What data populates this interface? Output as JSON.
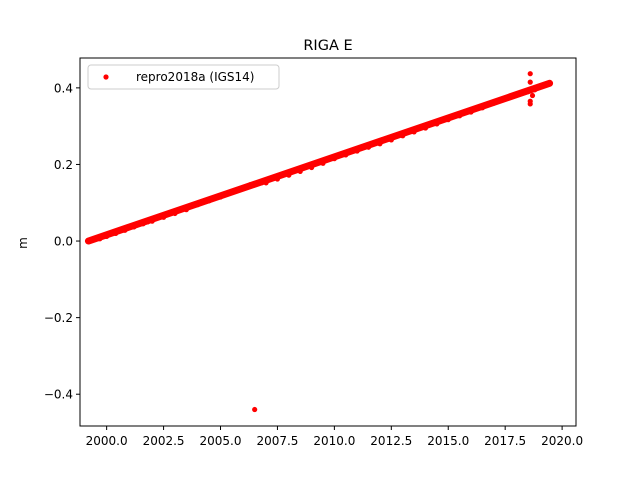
{
  "chart_data": {
    "type": "scatter",
    "title": "RIGA E",
    "xlabel": "",
    "ylabel": "m",
    "xlim": [
      1998.83,
      2020.61
    ],
    "ylim": [
      -0.483,
      0.478
    ],
    "xticks": [
      2000.0,
      2002.5,
      2005.0,
      2007.5,
      2010.0,
      2012.5,
      2015.0,
      2017.5,
      2020.0
    ],
    "xtick_labels": [
      "2000.0",
      "2002.5",
      "2005.0",
      "2007.5",
      "2010.0",
      "2012.5",
      "2015.0",
      "2017.5",
      "2020.0"
    ],
    "yticks": [
      -0.4,
      -0.2,
      0.0,
      0.2,
      0.4
    ],
    "ytick_labels": [
      "−0.4",
      "−0.2",
      "0.0",
      "0.2",
      "0.4"
    ],
    "grid": false,
    "legend_position": "upper left",
    "series": [
      {
        "name": "repro2018a (IGS14)",
        "color": "#ff0000",
        "marker": "circle",
        "trend": {
          "x_start": 1999.2,
          "y_start": 0.0,
          "x_end": 2019.45,
          "y_end": 0.412
        },
        "points": [
          [
            1999.2,
            0.0
          ],
          [
            1999.4,
            0.003
          ],
          [
            1999.7,
            0.006
          ],
          [
            2000.0,
            0.012
          ],
          [
            2000.4,
            0.02
          ],
          [
            2000.8,
            0.028
          ],
          [
            2001.2,
            0.037
          ],
          [
            2001.6,
            0.045
          ],
          [
            2001.8,
            0.05
          ],
          [
            2002.0,
            0.052
          ],
          [
            2002.5,
            0.062
          ],
          [
            2003.0,
            0.072
          ],
          [
            2003.5,
            0.082
          ],
          [
            2004.0,
            0.095
          ],
          [
            2004.5,
            0.105
          ],
          [
            2005.0,
            0.115
          ],
          [
            2005.5,
            0.128
          ],
          [
            2006.0,
            0.14
          ],
          [
            2006.3,
            0.147
          ],
          [
            2006.8,
            0.152
          ],
          [
            2007.0,
            0.152
          ],
          [
            2007.5,
            0.162
          ],
          [
            2008.0,
            0.172
          ],
          [
            2008.5,
            0.182
          ],
          [
            2009.0,
            0.192
          ],
          [
            2009.5,
            0.203
          ],
          [
            2010.0,
            0.215
          ],
          [
            2010.5,
            0.225
          ],
          [
            2011.0,
            0.235
          ],
          [
            2011.5,
            0.245
          ],
          [
            2012.0,
            0.254
          ],
          [
            2012.5,
            0.264
          ],
          [
            2013.0,
            0.275
          ],
          [
            2013.5,
            0.285
          ],
          [
            2014.0,
            0.295
          ],
          [
            2014.5,
            0.306
          ],
          [
            2015.0,
            0.317
          ],
          [
            2015.5,
            0.327
          ],
          [
            2016.0,
            0.337
          ],
          [
            2016.5,
            0.348
          ],
          [
            2017.0,
            0.36
          ],
          [
            2017.5,
            0.371
          ],
          [
            2018.0,
            0.382
          ],
          [
            2018.5,
            0.39
          ],
          [
            2018.6,
            0.437
          ],
          [
            2018.6,
            0.415
          ],
          [
            2018.6,
            0.365
          ],
          [
            2018.6,
            0.358
          ],
          [
            2018.7,
            0.38
          ],
          [
            2018.8,
            0.395
          ],
          [
            2019.0,
            0.403
          ],
          [
            2019.2,
            0.408
          ],
          [
            2019.45,
            0.412
          ],
          [
            2006.5,
            -0.44
          ]
        ]
      }
    ]
  }
}
